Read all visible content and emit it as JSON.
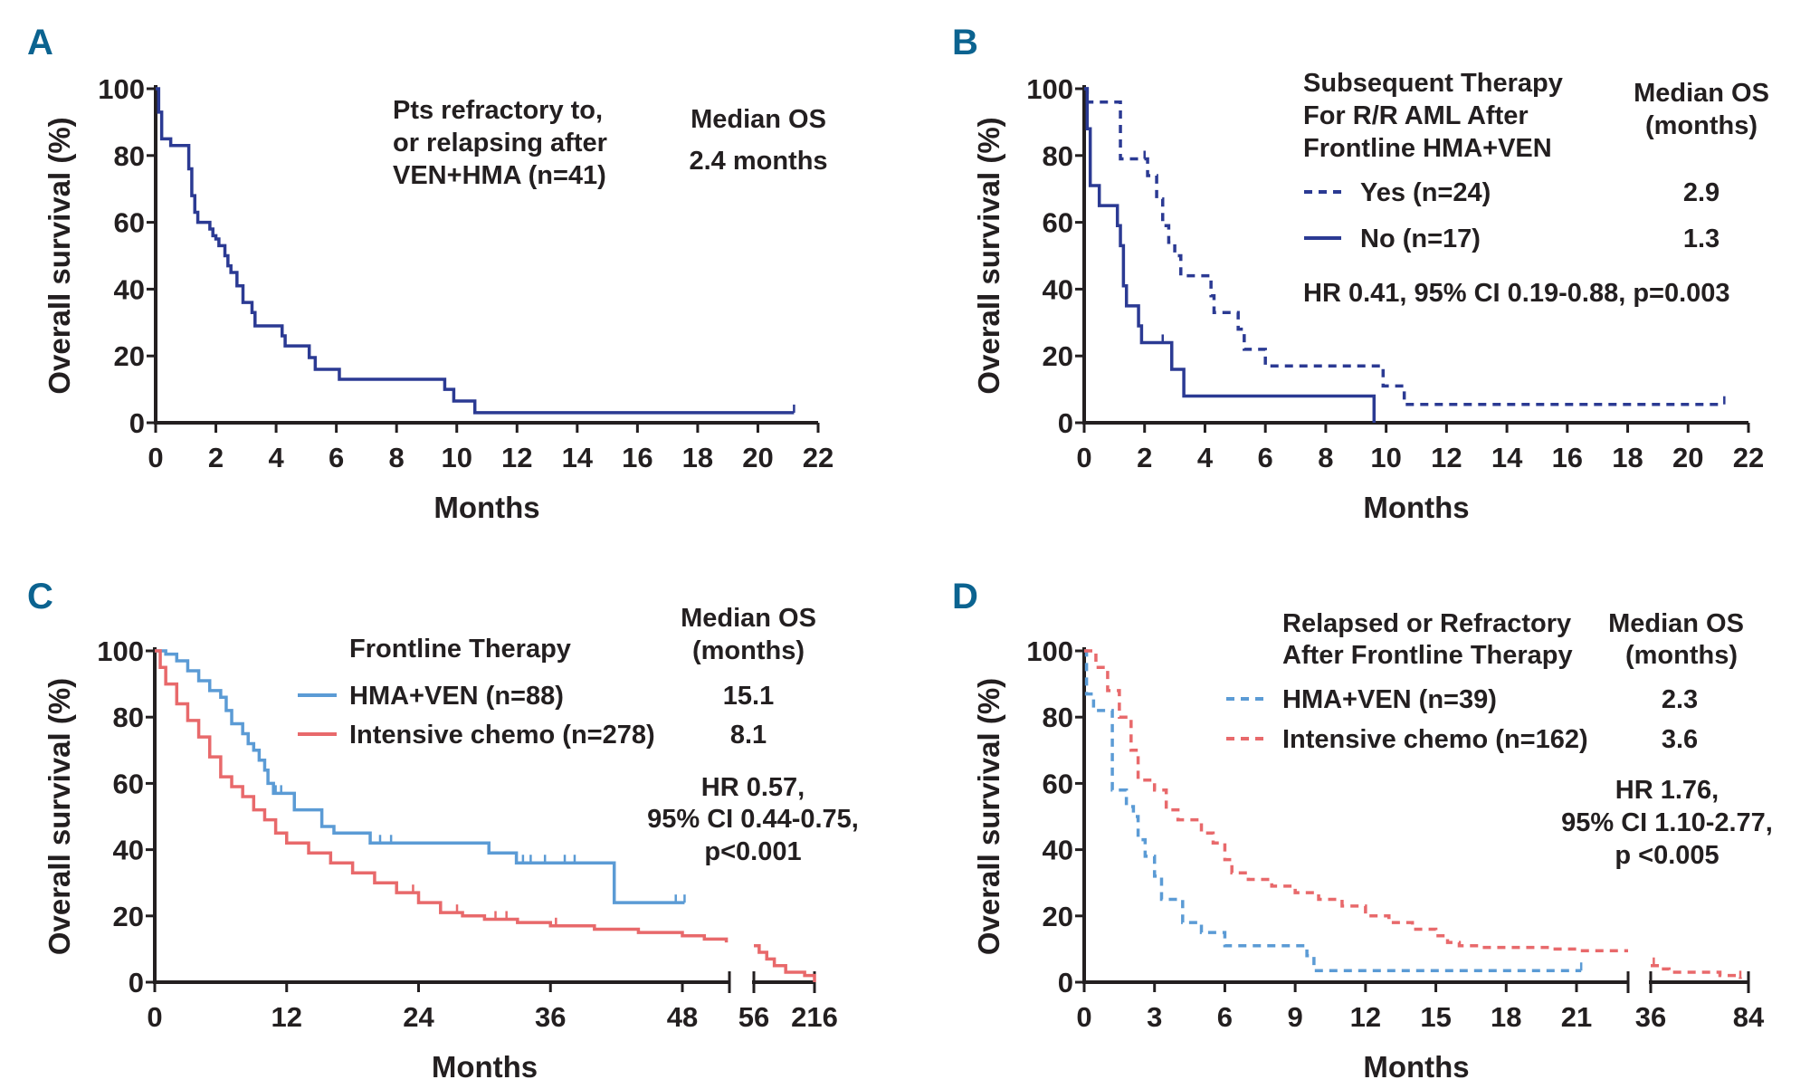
{
  "chart_data": [
    {
      "panel": "A",
      "type": "line",
      "xlabel": "Months",
      "ylabel": "Overall survival (%)",
      "ylim": [
        0,
        100
      ],
      "xlim": [
        0,
        22
      ],
      "xticks": [
        "0",
        "2",
        "4",
        "6",
        "8",
        "10",
        "12",
        "14",
        "16",
        "18",
        "20",
        "22"
      ],
      "yticks": [
        "0",
        "20",
        "40",
        "60",
        "80",
        "100"
      ],
      "annotation_lines": [
        "Pts refractory to,",
        "or relapsing after",
        "VEN+HMA (n=41)"
      ],
      "median_header": "Median  OS",
      "median_value": "2.4 months",
      "series": [
        {
          "color": "#2b3a93",
          "dashed": false,
          "points": [
            [
              0,
              100
            ],
            [
              0.1,
              93
            ],
            [
              0.2,
              85
            ],
            [
              0.5,
              83
            ],
            [
              1.1,
              76
            ],
            [
              1.2,
              68
            ],
            [
              1.3,
              63
            ],
            [
              1.4,
              60
            ],
            [
              1.8,
              58
            ],
            [
              1.9,
              56
            ],
            [
              2.0,
              55
            ],
            [
              2.1,
              53
            ],
            [
              2.3,
              50
            ],
            [
              2.4,
              47
            ],
            [
              2.5,
              45
            ],
            [
              2.7,
              41
            ],
            [
              2.9,
              36
            ],
            [
              3.2,
              33
            ],
            [
              3.3,
              29
            ],
            [
              4.2,
              26
            ],
            [
              4.3,
              23
            ],
            [
              5.1,
              19.5
            ],
            [
              5.3,
              16
            ],
            [
              6.1,
              13
            ],
            [
              9.6,
              10
            ],
            [
              9.9,
              6.5
            ],
            [
              10.6,
              3
            ],
            [
              21.2,
              3
            ]
          ],
          "censored": [
            21.2
          ]
        }
      ]
    },
    {
      "panel": "B",
      "type": "line",
      "xlabel": "Months",
      "ylabel": "Overall survival (%)",
      "ylim": [
        0,
        100
      ],
      "xlim": [
        0,
        22
      ],
      "xticks": [
        "0",
        "2",
        "4",
        "6",
        "8",
        "10",
        "12",
        "14",
        "16",
        "18",
        "20",
        "22"
      ],
      "yticks": [
        "0",
        "20",
        "40",
        "60",
        "80",
        "100"
      ],
      "legend_title_lines": [
        "Subsequent Therapy",
        "For R/R AML After",
        "Frontline HMA+VEN"
      ],
      "median_header_lines": [
        "Median  OS",
        "(months)"
      ],
      "stats": "HR 0.41, 95% CI 0.19-0.88, p=0.003",
      "series": [
        {
          "name": "Yes (n=24)",
          "median": "2.9",
          "color": "#2b3a93",
          "dashed": true,
          "points": [
            [
              0,
              100
            ],
            [
              0.1,
              96
            ],
            [
              1.2,
              79
            ],
            [
              2.1,
              74
            ],
            [
              2.4,
              67
            ],
            [
              2.6,
              59
            ],
            [
              2.8,
              54
            ],
            [
              3.0,
              50
            ],
            [
              3.2,
              44
            ],
            [
              4.2,
              38
            ],
            [
              4.3,
              33
            ],
            [
              5.1,
              28
            ],
            [
              5.3,
              22
            ],
            [
              6.0,
              17
            ],
            [
              9.9,
              11
            ],
            [
              10.6,
              5.5
            ],
            [
              21.2,
              5.5
            ]
          ],
          "censored": [
            2.0,
            21.2
          ]
        },
        {
          "name": "No (n=17)",
          "median": "1.3",
          "color": "#2b3a93",
          "dashed": false,
          "points": [
            [
              0,
              100
            ],
            [
              0.1,
              88
            ],
            [
              0.2,
              71
            ],
            [
              0.5,
              65
            ],
            [
              1.1,
              59
            ],
            [
              1.2,
              53
            ],
            [
              1.3,
              41
            ],
            [
              1.4,
              35
            ],
            [
              1.8,
              29
            ],
            [
              1.9,
              24
            ],
            [
              2.9,
              16
            ],
            [
              3.3,
              8
            ],
            [
              9.6,
              8
            ],
            [
              9.6,
              0
            ]
          ],
          "censored": [
            2.6
          ]
        }
      ]
    },
    {
      "panel": "C",
      "type": "line",
      "xlabel": "Months",
      "ylabel": "Overall survival (%)",
      "ylim": [
        0,
        100
      ],
      "x_axis_break": true,
      "xticks": [
        "0",
        "12",
        "24",
        "36",
        "48"
      ],
      "xticks_after_break": [
        "56",
        "216"
      ],
      "yticks": [
        "0",
        "20",
        "40",
        "60",
        "80",
        "100"
      ],
      "legend_title": "Frontline Therapy",
      "median_header_lines": [
        "Median  OS",
        "(months)"
      ],
      "stats_lines": [
        "HR 0.57,",
        "95% CI 0.44-0.75,",
        "p<0.001"
      ],
      "series": [
        {
          "name": "HMA+VEN (n=88)",
          "median": "15.1",
          "color": "#5b9bd5",
          "dashed": false,
          "points": [
            [
              0,
              100
            ],
            [
              1,
              99
            ],
            [
              2,
              97
            ],
            [
              3,
              94
            ],
            [
              4,
              91
            ],
            [
              5,
              88
            ],
            [
              6,
              86
            ],
            [
              6.5,
              82
            ],
            [
              7,
              78
            ],
            [
              8,
              75
            ],
            [
              8.5,
              72
            ],
            [
              9,
              70
            ],
            [
              9.5,
              67
            ],
            [
              10,
              64
            ],
            [
              10.3,
              60
            ],
            [
              10.8,
              57
            ],
            [
              12.7,
              52
            ],
            [
              15.2,
              47
            ],
            [
              16.3,
              45
            ],
            [
              19.6,
              42
            ],
            [
              30.4,
              39
            ],
            [
              32.9,
              36
            ],
            [
              41.8,
              24
            ],
            [
              48.2,
              24
            ]
          ],
          "censored": [
            11,
            11.5,
            20.5,
            21.5,
            33.5,
            34.2,
            35.5,
            37.3,
            38.2,
            47.4,
            48.2
          ]
        },
        {
          "name": "Intensive chemo (n=278)",
          "median": "8.1",
          "color": "#e8696b",
          "dashed": false,
          "points": [
            [
              0,
              100
            ],
            [
              0.5,
              95
            ],
            [
              1,
              90
            ],
            [
              2,
              84
            ],
            [
              3,
              79
            ],
            [
              4,
              74
            ],
            [
              5,
              68
            ],
            [
              6,
              62
            ],
            [
              7,
              59
            ],
            [
              8,
              56
            ],
            [
              9,
              52
            ],
            [
              10,
              49
            ],
            [
              11,
              45
            ],
            [
              12,
              42
            ],
            [
              14,
              39
            ],
            [
              16,
              36
            ],
            [
              18,
              33
            ],
            [
              20,
              30
            ],
            [
              22,
              27
            ],
            [
              24,
              24
            ],
            [
              26,
              21
            ],
            [
              28,
              20
            ],
            [
              30,
              19
            ],
            [
              33,
              18
            ],
            [
              36,
              17
            ],
            [
              40,
              16
            ],
            [
              44,
              15
            ],
            [
              48,
              14
            ],
            [
              50,
              13
            ],
            [
              52,
              12
            ]
          ],
          "points_after_break": [
            [
              56,
              11
            ],
            [
              70,
              9
            ],
            [
              90,
              7
            ],
            [
              110,
              5
            ],
            [
              140,
              3
            ],
            [
              190,
              2
            ],
            [
              210,
              2
            ],
            [
              216,
              0
            ]
          ],
          "censored": [
            23.5,
            27.5,
            31,
            32,
            36.5
          ]
        }
      ]
    },
    {
      "panel": "D",
      "type": "line",
      "xlabel": "Months",
      "ylabel": "Overall survival (%)",
      "ylim": [
        0,
        100
      ],
      "x_axis_break": true,
      "xticks": [
        "0",
        "3",
        "6",
        "9",
        "12",
        "15",
        "18",
        "21"
      ],
      "xticks_after_break": [
        "36",
        "84"
      ],
      "yticks": [
        "0",
        "20",
        "40",
        "60",
        "80",
        "100"
      ],
      "legend_title_lines": [
        "Relapsed or Refractory",
        "After Frontline Therapy"
      ],
      "median_header_lines": [
        "Median  OS",
        "(months)"
      ],
      "stats_lines": [
        "HR 1.76,",
        "95% CI 1.10-2.77,",
        "p <0.005"
      ],
      "series": [
        {
          "name": "HMA+VEN (n=39)",
          "median": "2.3",
          "color": "#5b9bd5",
          "dashed": true,
          "points": [
            [
              0,
              100
            ],
            [
              0.1,
              87
            ],
            [
              0.4,
              82
            ],
            [
              1.2,
              58
            ],
            [
              1.8,
              53
            ],
            [
              2.1,
              50
            ],
            [
              2.3,
              43
            ],
            [
              2.6,
              38
            ],
            [
              3.0,
              32
            ],
            [
              3.3,
              25
            ],
            [
              4.2,
              18
            ],
            [
              5.0,
              15
            ],
            [
              6.0,
              11
            ],
            [
              9.5,
              8
            ],
            [
              9.8,
              3.5
            ],
            [
              21.2,
              3.5
            ]
          ],
          "censored": [
            21.2
          ]
        },
        {
          "name": "Intensive chemo (n=162)",
          "median": "3.6",
          "color": "#e8696b",
          "dashed": true,
          "points": [
            [
              0,
              100
            ],
            [
              0.5,
              95
            ],
            [
              1,
              88
            ],
            [
              1.5,
              80
            ],
            [
              2,
              70
            ],
            [
              2.3,
              61
            ],
            [
              3,
              58
            ],
            [
              3.5,
              52
            ],
            [
              4,
              49
            ],
            [
              5,
              45
            ],
            [
              5.5,
              42
            ],
            [
              6,
              37
            ],
            [
              6.3,
              33
            ],
            [
              7,
              31
            ],
            [
              8,
              29
            ],
            [
              9,
              27
            ],
            [
              10,
              25
            ],
            [
              11,
              23
            ],
            [
              12,
              20
            ],
            [
              13,
              18
            ],
            [
              14,
              16
            ],
            [
              15,
              14
            ],
            [
              15.5,
              12
            ],
            [
              16,
              11
            ],
            [
              17,
              10.5
            ],
            [
              20,
              10
            ],
            [
              21,
              9.5
            ],
            [
              23.2,
              9.5
            ]
          ],
          "points_after_break": [
            [
              36,
              5
            ],
            [
              40,
              4
            ],
            [
              45,
              3
            ],
            [
              70,
              2
            ],
            [
              80,
              1
            ]
          ],
          "censored": [
            37.5,
            80
          ]
        }
      ]
    }
  ],
  "panel_letters": [
    "A",
    "B",
    "C",
    "D"
  ]
}
